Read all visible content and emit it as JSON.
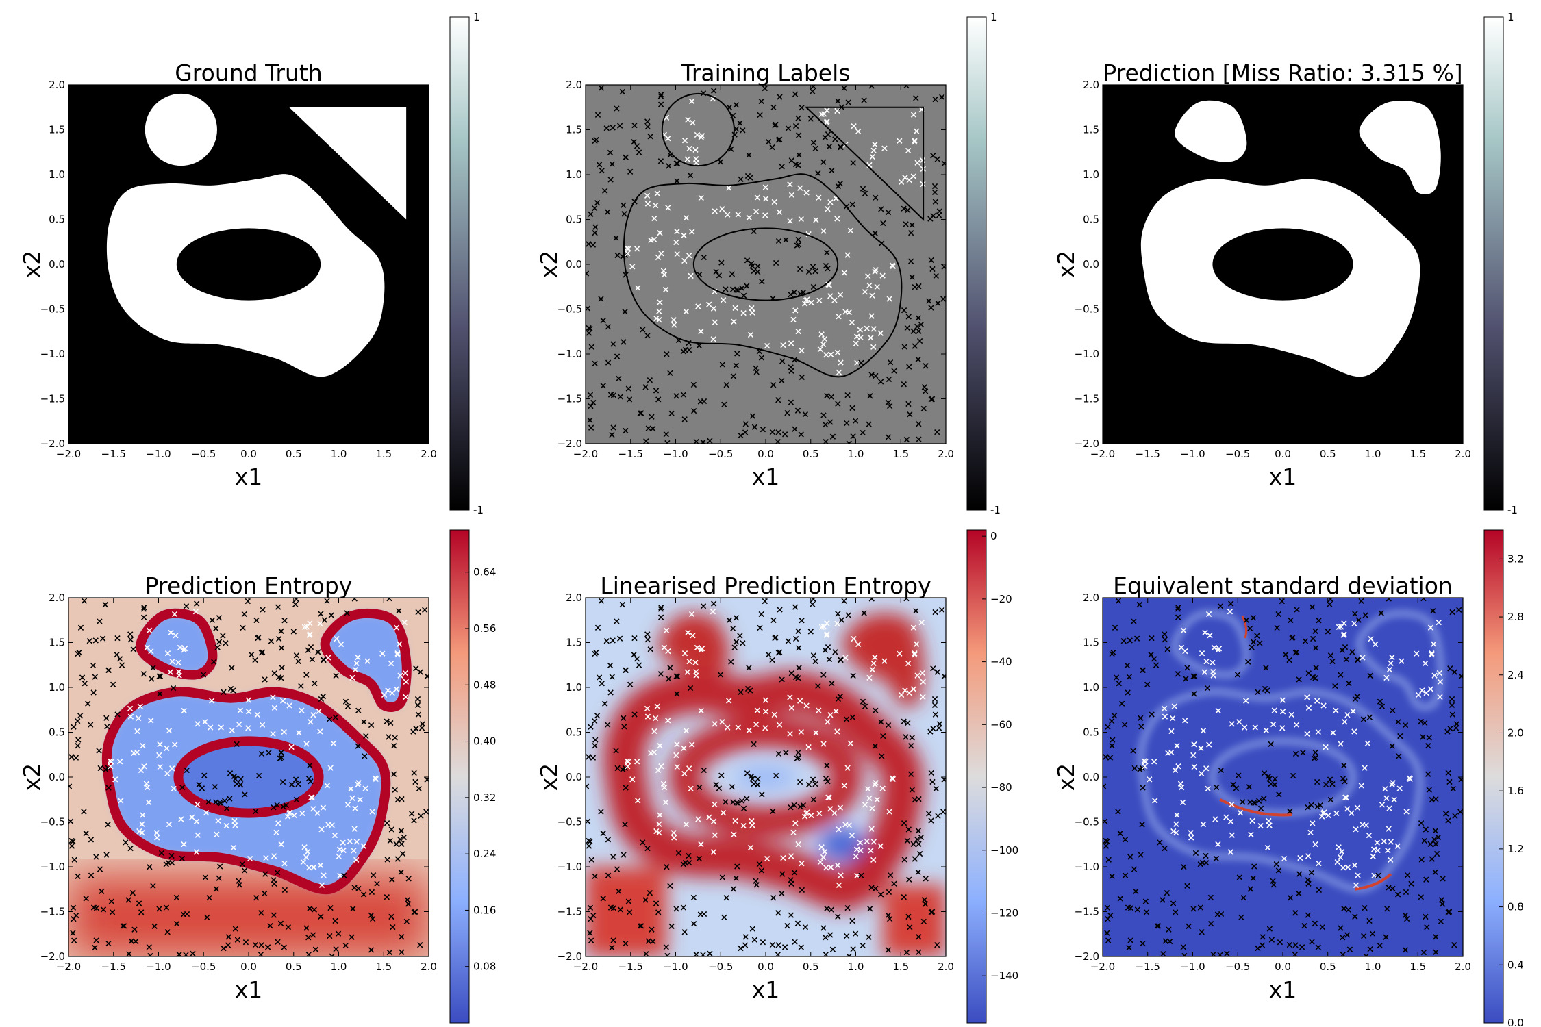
{
  "chart_data": [
    {
      "type": "heatmap",
      "title": "Ground Truth",
      "xlabel": "x1",
      "ylabel": "x2",
      "xlim": [
        -2.0,
        2.0
      ],
      "ylim": [
        -2.0,
        2.0
      ],
      "xticks": [
        "−2.0",
        "−1.5",
        "−1.0",
        "−0.5",
        "0.0",
        "0.5",
        "1.0",
        "1.5",
        "2.0"
      ],
      "yticks": [
        "−2.0",
        "−1.5",
        "−1.0",
        "−0.5",
        "0.0",
        "0.5",
        "1.0",
        "1.5",
        "2.0"
      ],
      "colormap": "bone",
      "colorbar": {
        "ticks": [
          "1",
          "-1"
        ],
        "range": [
          -1,
          1
        ]
      },
      "regions": [
        {
          "shape": "circle",
          "center": [
            -0.75,
            1.5
          ],
          "radius": 0.4,
          "value": 1
        },
        {
          "shape": "triangle",
          "vertices": [
            [
              0.45,
              1.75
            ],
            [
              1.75,
              1.75
            ],
            [
              1.75,
              0.5
            ]
          ],
          "value": 1
        },
        {
          "shape": "blob_ring",
          "outer": [
            [
              -1.55,
              0.45
            ],
            [
              -1.35,
              0.82
            ],
            [
              -0.9,
              0.9
            ],
            [
              -0.4,
              0.88
            ],
            [
              0.1,
              0.95
            ],
            [
              0.45,
              1.0
            ],
            [
              0.75,
              0.8
            ],
            [
              1.1,
              0.4
            ],
            [
              1.45,
              0.05
            ],
            [
              1.5,
              -0.4
            ],
            [
              1.35,
              -0.85
            ],
            [
              0.85,
              -1.25
            ],
            [
              0.3,
              -1.05
            ],
            [
              -0.3,
              -0.9
            ],
            [
              -0.9,
              -0.85
            ],
            [
              -1.35,
              -0.55
            ],
            [
              -1.55,
              -0.1
            ]
          ],
          "hole_center": [
            0.0,
            0.0
          ],
          "hole_radii": [
            0.8,
            0.4
          ],
          "value": 1
        }
      ],
      "background": -1
    },
    {
      "type": "scatter",
      "title": "Training Labels",
      "xlabel": "x1",
      "ylabel": "x2",
      "xlim": [
        -2.0,
        2.0
      ],
      "ylim": [
        -2.0,
        2.0
      ],
      "xticks": [
        "−2.0",
        "−1.5",
        "−1.0",
        "−0.5",
        "0.0",
        "0.5",
        "1.0",
        "1.5",
        "2.0"
      ],
      "yticks": [
        "−2.0",
        "−1.5",
        "−1.0",
        "−0.5",
        "0.0",
        "0.5",
        "1.0",
        "1.5",
        "2.0"
      ],
      "colormap": "bone",
      "colorbar": {
        "ticks": [
          "1",
          "-1"
        ],
        "range": [
          -1,
          1
        ]
      },
      "marker": "x",
      "series": [
        {
          "color": "#ffffff",
          "points_inside_shapes": true
        },
        {
          "color": "#000000",
          "points_outside_shapes": true
        }
      ]
    },
    {
      "type": "heatmap",
      "title": "Prediction [Miss Ratio: 3.315 %]",
      "xlabel": "x1",
      "ylabel": "x2",
      "xlim": [
        -2.0,
        2.0
      ],
      "ylim": [
        -2.0,
        2.0
      ],
      "xticks": [
        "−2.0",
        "−1.5",
        "−1.0",
        "−0.5",
        "0.0",
        "0.5",
        "1.0",
        "1.5",
        "2.0"
      ],
      "yticks": [
        "−2.0",
        "−1.5",
        "−1.0",
        "−0.5",
        "0.0",
        "0.5",
        "1.0",
        "1.5",
        "2.0"
      ],
      "colormap": "bone",
      "colorbar": {
        "ticks": [
          "1",
          "-1"
        ],
        "range": [
          -1,
          1
        ]
      },
      "miss_ratio_percent": 3.315
    },
    {
      "type": "heatmap",
      "title": "Prediction Entropy",
      "xlabel": "x1",
      "ylabel": "x2",
      "xlim": [
        -2.0,
        2.0
      ],
      "ylim": [
        -2.0,
        2.0
      ],
      "xticks": [
        "−2.0",
        "−1.5",
        "−1.0",
        "−0.5",
        "0.0",
        "0.5",
        "1.0",
        "1.5",
        "2.0"
      ],
      "yticks": [
        "−2.0",
        "−1.5",
        "−1.0",
        "−0.5",
        "0.0",
        "0.5",
        "1.0",
        "1.5",
        "2.0"
      ],
      "colormap": "coolwarm",
      "colorbar": {
        "ticks": [
          "0.64",
          "0.56",
          "0.48",
          "0.40",
          "0.32",
          "0.24",
          "0.16",
          "0.08"
        ],
        "range": [
          0.0,
          0.7
        ]
      }
    },
    {
      "type": "heatmap",
      "title": "Linearised Prediction Entropy",
      "xlabel": "x1",
      "ylabel": "x2",
      "xlim": [
        -2.0,
        2.0
      ],
      "ylim": [
        -2.0,
        2.0
      ],
      "xticks": [
        "−2.0",
        "−1.5",
        "−1.0",
        "−0.5",
        "0.0",
        "0.5",
        "1.0",
        "1.5",
        "2.0"
      ],
      "yticks": [
        "−2.0",
        "−1.5",
        "−1.0",
        "−0.5",
        "0.0",
        "0.5",
        "1.0",
        "1.5",
        "2.0"
      ],
      "colormap": "coolwarm",
      "colorbar": {
        "ticks": [
          "0",
          "−20",
          "−40",
          "−60",
          "−80",
          "−100",
          "−120",
          "−140"
        ],
        "range": [
          -155,
          2
        ]
      }
    },
    {
      "type": "heatmap",
      "title": "Equivalent standard deviation",
      "xlabel": "x1",
      "ylabel": "x2",
      "xlim": [
        -2.0,
        2.0
      ],
      "ylim": [
        -2.0,
        2.0
      ],
      "xticks": [
        "−2.0",
        "−1.5",
        "−1.0",
        "−0.5",
        "0.0",
        "0.5",
        "1.0",
        "1.5",
        "2.0"
      ],
      "yticks": [
        "−2.0",
        "−1.5",
        "−1.0",
        "−0.5",
        "0.0",
        "0.5",
        "1.0",
        "1.5",
        "2.0"
      ],
      "colormap": "coolwarm",
      "colorbar": {
        "ticks": [
          "3.2",
          "2.8",
          "2.4",
          "2.0",
          "1.6",
          "1.2",
          "0.8",
          "0.4",
          "0.0"
        ],
        "range": [
          0.0,
          3.4
        ]
      }
    }
  ]
}
